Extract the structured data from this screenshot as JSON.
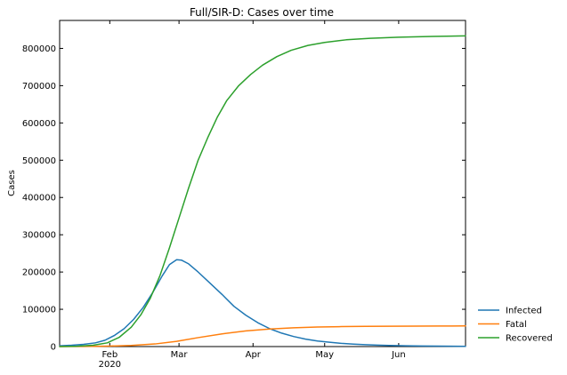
{
  "chart_data": {
    "type": "line",
    "title": "Full/SIR-D: Cases over time",
    "xlabel": "",
    "ylabel": "Cases",
    "x_start": "2020-01-11",
    "x_end": "2020-06-29",
    "xlim": [
      "2020-01-11",
      "2020-06-29"
    ],
    "ylim": [
      0,
      875000
    ],
    "x_ticks": [
      {
        "date": "2020-02-01",
        "label": "Feb",
        "sublabel": "2020"
      },
      {
        "date": "2020-03-01",
        "label": "Mar",
        "sublabel": ""
      },
      {
        "date": "2020-04-01",
        "label": "Apr",
        "sublabel": ""
      },
      {
        "date": "2020-05-01",
        "label": "May",
        "sublabel": ""
      },
      {
        "date": "2020-06-01",
        "label": "Jun",
        "sublabel": ""
      }
    ],
    "y_ticks": [
      0,
      100000,
      200000,
      300000,
      400000,
      500000,
      600000,
      700000,
      800000
    ],
    "grid": false,
    "legend_position": "outside-bottom-right",
    "series": [
      {
        "name": "Infected",
        "color": "#1f77b4",
        "points": [
          [
            "2020-01-11",
            2000
          ],
          [
            "2020-01-16",
            3500
          ],
          [
            "2020-01-21",
            6000
          ],
          [
            "2020-01-26",
            10000
          ],
          [
            "2020-01-30",
            17000
          ],
          [
            "2020-02-03",
            30000
          ],
          [
            "2020-02-07",
            48000
          ],
          [
            "2020-02-11",
            73000
          ],
          [
            "2020-02-15",
            105000
          ],
          [
            "2020-02-19",
            145000
          ],
          [
            "2020-02-23",
            190000
          ],
          [
            "2020-02-26",
            220000
          ],
          [
            "2020-02-29",
            233000
          ],
          [
            "2020-03-02",
            232000
          ],
          [
            "2020-03-05",
            222000
          ],
          [
            "2020-03-09",
            200000
          ],
          [
            "2020-03-14",
            170000
          ],
          [
            "2020-03-19",
            140000
          ],
          [
            "2020-03-24",
            108000
          ],
          [
            "2020-03-29",
            84000
          ],
          [
            "2020-04-03",
            64000
          ],
          [
            "2020-04-08",
            48000
          ],
          [
            "2020-04-13",
            36000
          ],
          [
            "2020-04-18",
            27000
          ],
          [
            "2020-04-23",
            20000
          ],
          [
            "2020-04-28",
            15000
          ],
          [
            "2020-05-03",
            11500
          ],
          [
            "2020-05-08",
            8500
          ],
          [
            "2020-05-13",
            6500
          ],
          [
            "2020-05-18",
            5000
          ],
          [
            "2020-05-23",
            3800
          ],
          [
            "2020-05-28",
            3000
          ],
          [
            "2020-06-04",
            2200
          ],
          [
            "2020-06-11",
            1600
          ],
          [
            "2020-06-18",
            1200
          ],
          [
            "2020-06-29",
            700
          ]
        ]
      },
      {
        "name": "Fatal",
        "color": "#ff7f0e",
        "points": [
          [
            "2020-01-11",
            0
          ],
          [
            "2020-01-21",
            300
          ],
          [
            "2020-01-31",
            1200
          ],
          [
            "2020-02-10",
            3000
          ],
          [
            "2020-02-20",
            7000
          ],
          [
            "2020-02-29",
            14000
          ],
          [
            "2020-03-09",
            24000
          ],
          [
            "2020-03-19",
            34000
          ],
          [
            "2020-03-29",
            42000
          ],
          [
            "2020-04-08",
            47000
          ],
          [
            "2020-04-18",
            50500
          ],
          [
            "2020-04-28",
            52500
          ],
          [
            "2020-05-08",
            53500
          ],
          [
            "2020-05-18",
            54200
          ],
          [
            "2020-05-28",
            54600
          ],
          [
            "2020-06-08",
            54900
          ],
          [
            "2020-06-18",
            55100
          ],
          [
            "2020-06-29",
            55300
          ]
        ]
      },
      {
        "name": "Recovered",
        "color": "#2ca02c",
        "points": [
          [
            "2020-01-11",
            0
          ],
          [
            "2020-01-18",
            1000
          ],
          [
            "2020-01-25",
            3500
          ],
          [
            "2020-01-31",
            10000
          ],
          [
            "2020-02-05",
            25000
          ],
          [
            "2020-02-10",
            52000
          ],
          [
            "2020-02-14",
            85000
          ],
          [
            "2020-02-18",
            130000
          ],
          [
            "2020-02-22",
            190000
          ],
          [
            "2020-02-26",
            265000
          ],
          [
            "2020-03-01",
            345000
          ],
          [
            "2020-03-05",
            425000
          ],
          [
            "2020-03-09",
            500000
          ],
          [
            "2020-03-13",
            560000
          ],
          [
            "2020-03-17",
            615000
          ],
          [
            "2020-03-21",
            660000
          ],
          [
            "2020-03-26",
            700000
          ],
          [
            "2020-03-31",
            730000
          ],
          [
            "2020-04-05",
            755000
          ],
          [
            "2020-04-11",
            778000
          ],
          [
            "2020-04-17",
            795000
          ],
          [
            "2020-04-24",
            808000
          ],
          [
            "2020-05-01",
            816000
          ],
          [
            "2020-05-10",
            823000
          ],
          [
            "2020-05-20",
            827000
          ],
          [
            "2020-06-01",
            830000
          ],
          [
            "2020-06-15",
            832000
          ],
          [
            "2020-06-29",
            833500
          ]
        ]
      }
    ]
  }
}
